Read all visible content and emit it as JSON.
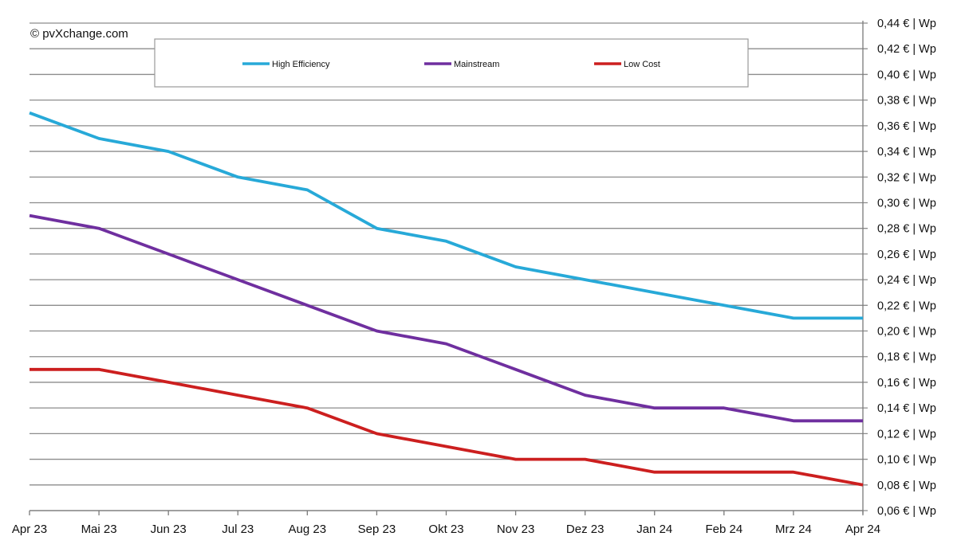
{
  "copyright": "© pvXchange.com",
  "chart_data": {
    "type": "line",
    "categories": [
      "Apr 23",
      "Mai 23",
      "Jun 23",
      "Jul 23",
      "Aug 23",
      "Sep 23",
      "Okt 23",
      "Nov 23",
      "Dez 23",
      "Jan 24",
      "Feb 24",
      "Mrz 24",
      "Apr 24"
    ],
    "series": [
      {
        "name": "High Efficiency",
        "color": "#27a9d8",
        "values": [
          0.37,
          0.35,
          0.34,
          0.32,
          0.31,
          0.28,
          0.27,
          0.25,
          0.24,
          0.23,
          0.22,
          0.21,
          0.21
        ]
      },
      {
        "name": "Mainstream",
        "color": "#6f2f9f",
        "values": [
          0.29,
          0.28,
          0.26,
          0.24,
          0.22,
          0.2,
          0.19,
          0.17,
          0.15,
          0.14,
          0.14,
          0.13,
          0.13
        ]
      },
      {
        "name": "Low Cost",
        "color": "#cc1f1f",
        "values": [
          0.17,
          0.17,
          0.16,
          0.15,
          0.14,
          0.12,
          0.11,
          0.1,
          0.1,
          0.09,
          0.09,
          0.09,
          0.08
        ]
      }
    ],
    "ylim": [
      0.06,
      0.44
    ],
    "ytick_values": [
      0.06,
      0.08,
      0.1,
      0.12,
      0.14,
      0.16,
      0.18,
      0.2,
      0.22,
      0.24,
      0.26,
      0.28,
      0.3,
      0.32,
      0.34,
      0.36,
      0.38,
      0.4,
      0.42,
      0.44
    ],
    "ytick_labels": [
      "0,06 € | Wp",
      "0,08 € | Wp",
      "0,10 € | Wp",
      "0,12 € | Wp",
      "0,14 € | Wp",
      "0,16 € | Wp",
      "0,18 € | Wp",
      "0,20 € | Wp",
      "0,22 € | Wp",
      "0,24 € | Wp",
      "0,26 € | Wp",
      "0,28 € | Wp",
      "0,30 € | Wp",
      "0,32 € | Wp",
      "0,34 € | Wp",
      "0,36 € | Wp",
      "0,38 € | Wp",
      "0,40 € | Wp",
      "0,42 € | Wp",
      "0,44 € | Wp"
    ],
    "grid": true,
    "y_axis_side": "right",
    "legend_position": "top-center"
  }
}
